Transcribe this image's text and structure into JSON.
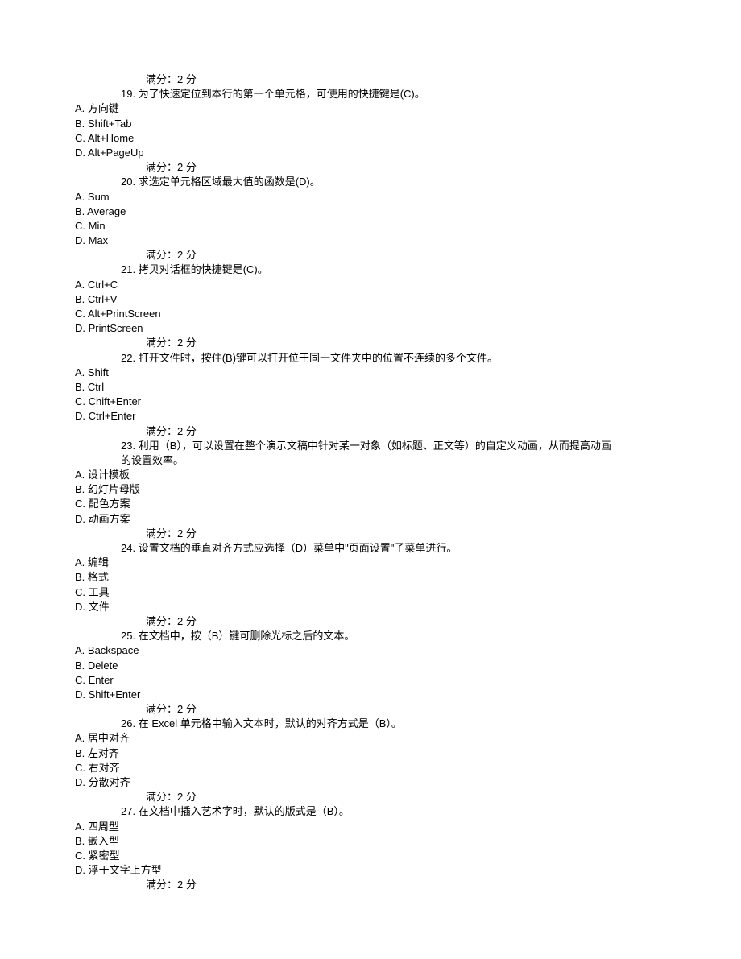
{
  "document": {
    "text_color": "#000000",
    "background_color": "#ffffff",
    "font_size": 13,
    "score_label": "满分：2 分",
    "questions": [
      {
        "number": "19.",
        "text": "为了快速定位到本行的第一个单元格，可使用的快捷键是(C)。",
        "options": [
          "A. 方向键",
          "B. Shift+Tab",
          "C. Alt+Home",
          "D. Alt+PageUp"
        ]
      },
      {
        "number": "20.",
        "text": "求选定单元格区域最大值的函数是(D)。",
        "options": [
          "A. Sum",
          "B. Average",
          "C. Min",
          "D. Max"
        ]
      },
      {
        "number": "21.",
        "text": "拷贝对话框的快捷键是(C)。",
        "options": [
          "A. Ctrl+C",
          "B. Ctrl+V",
          "C. Alt+PrintScreen",
          "D. PrintScreen"
        ]
      },
      {
        "number": "22.",
        "text": "打开文件时，按住(B)键可以打开位于同一文件夹中的位置不连续的多个文件。",
        "options": [
          "A. Shift",
          "B. Ctrl",
          "C. Chift+Enter",
          "D. Ctrl+Enter"
        ]
      },
      {
        "number": "23.",
        "text": "利用（B），可以设置在整个演示文稿中针对某一对象（如标题、正文等）的自定义动画，从而提高动画",
        "text_continuation": "的设置效率。",
        "options": [
          "A. 设计模板",
          "B. 幻灯片母版",
          "C. 配色方案",
          "D. 动画方案"
        ]
      },
      {
        "number": "24.",
        "text": "设置文档的垂直对齐方式应选择（D）菜单中\"页面设置\"子菜单进行。",
        "options": [
          "A. 编辑",
          "B. 格式",
          "C. 工具",
          "D. 文件"
        ]
      },
      {
        "number": "25.",
        "text": "在文档中，按（B）键可删除光标之后的文本。",
        "options": [
          "A. Backspace",
          "B. Delete",
          "C. Enter",
          "D. Shift+Enter"
        ]
      },
      {
        "number": "26.",
        "text": "在 Excel 单元格中输入文本时，默认的对齐方式是（B）。",
        "options": [
          "A. 居中对齐",
          "B. 左对齐",
          "C. 右对齐",
          "D. 分散对齐"
        ]
      },
      {
        "number": "27.",
        "text": "在文档中插入艺术字时，默认的版式是（B）。",
        "options": [
          "A. 四周型",
          "B. 嵌入型",
          "C. 紧密型",
          "D. 浮于文字上方型"
        ]
      }
    ]
  }
}
